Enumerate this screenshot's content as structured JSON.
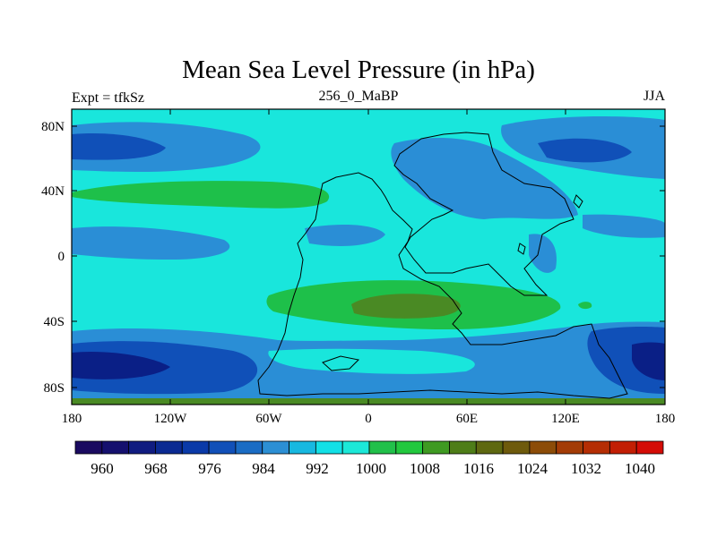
{
  "title": "Mean Sea Level Pressure (in hPa)",
  "expt_label": "Expt = tfkSz",
  "center_label": "256_0_MaBP",
  "season_label": "JJA",
  "x_ticks": [
    "180",
    "120W",
    "60W",
    "0",
    "60E",
    "120E",
    "180"
  ],
  "y_ticks": [
    "80N",
    "40N",
    "0",
    "40S",
    "80S"
  ],
  "colorbar": {
    "labels": [
      "960",
      "968",
      "976",
      "984",
      "992",
      "1000",
      "1008",
      "1016",
      "1024",
      "1032",
      "1040"
    ],
    "colors": [
      "#1a0a60",
      "#15106e",
      "#101c80",
      "#0b2a92",
      "#0a3aa8",
      "#1150b8",
      "#1a6cc4",
      "#2c8fd4",
      "#17b8e0",
      "#12e0e6",
      "#1ce8d8",
      "#21c04a",
      "#22c83e",
      "#3f9a22",
      "#4e7d18",
      "#5e6810",
      "#6e5a0c",
      "#8c4c08",
      "#a33c06",
      "#b52e04",
      "#c21e04",
      "#d40c06"
    ]
  },
  "colors": {
    "ocean_background": "#19e6dc",
    "deep_blue": "#0a1f86",
    "mid_blue": "#1050b8",
    "light_blue": "#2a8ed6",
    "cyan": "#19e6dc",
    "green": "#1ec04a",
    "olive": "#4a8a24"
  }
}
